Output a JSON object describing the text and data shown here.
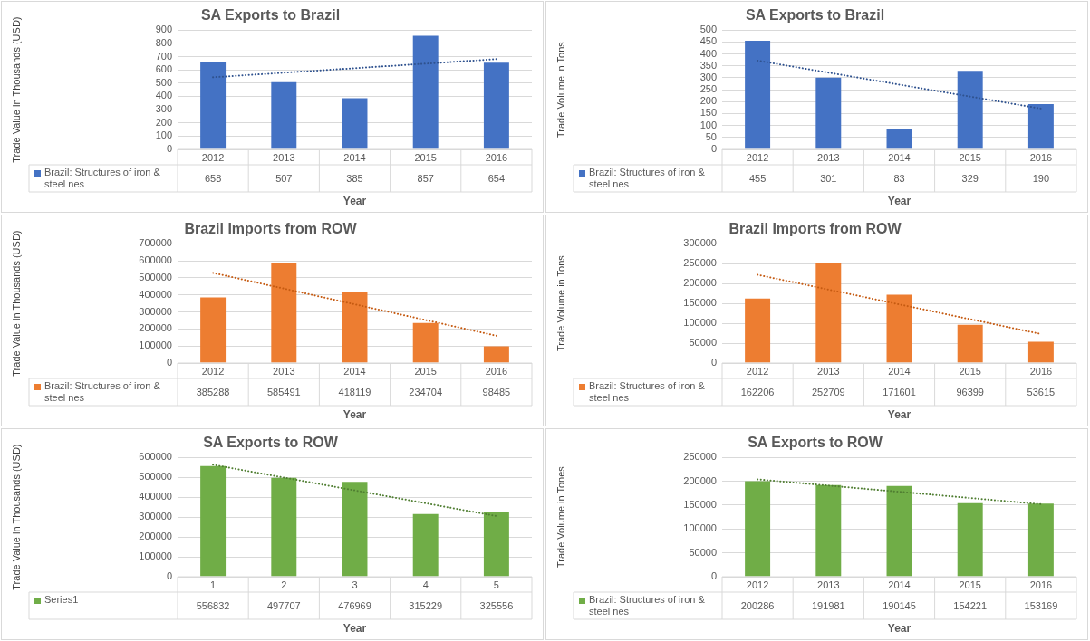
{
  "chart_data": [
    {
      "type": "bar",
      "title": "SA Exports to Brazil",
      "xlabel": "Year",
      "ylabel": "Trade Value in Thousands (USD)",
      "categories": [
        "2012",
        "2013",
        "2014",
        "2015",
        "2016"
      ],
      "ylim": [
        0,
        900
      ],
      "yticks": [
        0,
        100,
        200,
        300,
        400,
        500,
        600,
        700,
        800,
        900
      ],
      "grid": "y",
      "legend": "bottom",
      "series": [
        {
          "name": "Brazil: Structures of iron & steel nes",
          "color": "#4472c4",
          "values": [
            658,
            507,
            385,
            857,
            654
          ],
          "value_labels": [
            "658",
            "507",
            "385",
            "857",
            "654"
          ]
        },
        {
          "type": "line",
          "color": "#2f528f",
          "line_style": "dotted",
          "values": [
            544,
            null,
            null,
            null,
            681
          ]
        }
      ]
    },
    {
      "type": "bar",
      "title": "SA Exports to Brazil",
      "xlabel": "Year",
      "ylabel": "Trade Volume in Tons",
      "categories": [
        "2012",
        "2013",
        "2014",
        "2015",
        "2016"
      ],
      "ylim": [
        0,
        500
      ],
      "yticks": [
        0,
        50,
        100,
        150,
        200,
        250,
        300,
        350,
        400,
        450,
        500
      ],
      "grid": "y",
      "legend": "bottom",
      "series": [
        {
          "name": "Brazil: Structures of iron & steel nes",
          "color": "#4472c4",
          "values": [
            455,
            301,
            83,
            329,
            190
          ],
          "value_labels": [
            "455",
            "301",
            "83",
            "329",
            "190"
          ]
        },
        {
          "type": "line",
          "color": "#2f528f",
          "line_style": "dotted",
          "values": [
            372,
            null,
            null,
            null,
            171
          ]
        }
      ]
    },
    {
      "type": "bar",
      "title": "Brazil Imports from ROW",
      "xlabel": "Year",
      "ylabel": "Trade Value in Thousands (USD)",
      "categories": [
        "2012",
        "2013",
        "2014",
        "2015",
        "2016"
      ],
      "ylim": [
        0,
        700000
      ],
      "yticks": [
        0,
        100000,
        200000,
        300000,
        400000,
        500000,
        600000,
        700000
      ],
      "grid": "y",
      "legend": "bottom",
      "series": [
        {
          "name": "Brazil: Structures of iron & steel nes",
          "color": "#ed7d31",
          "values": [
            385288,
            585491,
            418119,
            234704,
            98485
          ],
          "value_labels": [
            "385288",
            "585491",
            "418119",
            "234704",
            "98485"
          ]
        },
        {
          "type": "line",
          "color": "#c55a11",
          "line_style": "dotted",
          "values": [
            529000,
            null,
            null,
            null,
            160000
          ]
        }
      ]
    },
    {
      "type": "bar",
      "title": "Brazil Imports from ROW",
      "xlabel": "Year",
      "ylabel": "Trade Volume in Tons",
      "categories": [
        "2012",
        "2013",
        "2014",
        "2015",
        "2016"
      ],
      "ylim": [
        0,
        300000
      ],
      "yticks": [
        0,
        50000,
        100000,
        150000,
        200000,
        250000,
        300000
      ],
      "grid": "y",
      "legend": "bottom",
      "series": [
        {
          "name": "Brazil: Structures of iron & steel nes",
          "color": "#ed7d31",
          "values": [
            162206,
            252709,
            171601,
            96399,
            53615
          ],
          "value_labels": [
            "162206",
            "252709",
            "171601",
            "96399",
            "53615"
          ]
        },
        {
          "type": "line",
          "color": "#c55a11",
          "line_style": "dotted",
          "values": [
            222000,
            null,
            null,
            null,
            73000
          ]
        }
      ]
    },
    {
      "type": "bar",
      "title": "SA Exports to ROW",
      "xlabel": "Year",
      "ylabel": "Trade Value in Thousands (USD)",
      "categories": [
        "1",
        "2",
        "3",
        "4",
        "5"
      ],
      "ylim": [
        0,
        600000
      ],
      "yticks": [
        0,
        100000,
        200000,
        300000,
        400000,
        500000,
        600000
      ],
      "grid": "y",
      "legend": "bottom",
      "series": [
        {
          "name": "Series1",
          "color": "#70ad47",
          "values": [
            556832,
            497707,
            476969,
            315229,
            325556
          ],
          "value_labels": [
            "556832",
            "497707",
            "476969",
            "315229",
            "325556"
          ]
        },
        {
          "type": "line",
          "color": "#507e32",
          "line_style": "dotted",
          "values": [
            563000,
            null,
            null,
            null,
            305000
          ]
        }
      ]
    },
    {
      "type": "bar",
      "title": "SA Exports to ROW",
      "xlabel": "Year",
      "ylabel": "Trade Volume in Tones",
      "categories": [
        "2012",
        "2013",
        "2014",
        "2015",
        "2016"
      ],
      "ylim": [
        0,
        250000
      ],
      "yticks": [
        0,
        50000,
        100000,
        150000,
        200000,
        250000
      ],
      "grid": "y",
      "legend": "bottom",
      "series": [
        {
          "name": "Brazil: Structures of iron & steel nes",
          "color": "#70ad47",
          "values": [
            200286,
            191981,
            190145,
            154221,
            153169
          ],
          "value_labels": [
            "200286",
            "191981",
            "190145",
            "154221",
            "153169"
          ]
        },
        {
          "type": "line",
          "color": "#507e32",
          "line_style": "dotted",
          "values": [
            204000,
            null,
            null,
            null,
            152000
          ]
        }
      ]
    }
  ]
}
